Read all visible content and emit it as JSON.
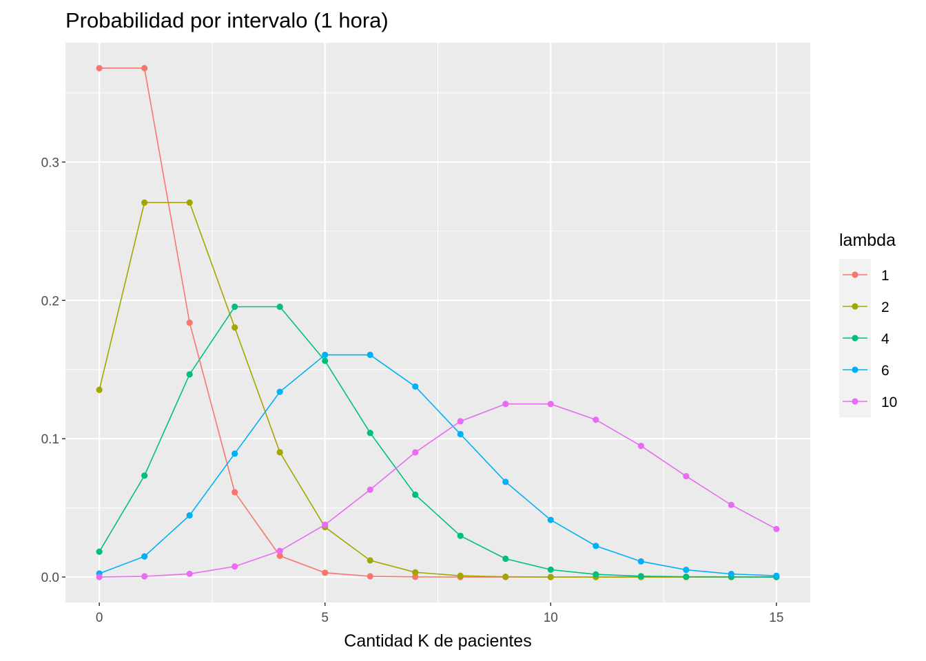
{
  "chart_data": {
    "type": "line",
    "title": "Probabilidad por intervalo (1 hora)",
    "xlabel": "Cantidad K de pacientes",
    "ylabel": "",
    "xlim": [
      -0.75,
      15.75
    ],
    "ylim": [
      -0.0184,
      0.3863
    ],
    "x_ticks": [
      0,
      5,
      10,
      15
    ],
    "x_tick_labels": [
      "0",
      "5",
      "10",
      "15"
    ],
    "y_ticks": [
      0,
      0.1,
      0.2,
      0.3
    ],
    "y_tick_labels": [
      "0.0",
      "0.1",
      "0.2",
      "0.3"
    ],
    "grid": true,
    "legend": {
      "title": "lambda",
      "position": "right"
    },
    "x": [
      0,
      1,
      2,
      3,
      4,
      5,
      6,
      7,
      8,
      9,
      10,
      11,
      12,
      13,
      14,
      15
    ],
    "series": [
      {
        "name": "1",
        "color": "#F8766D",
        "values": [
          0.3679,
          0.3679,
          0.1839,
          0.0613,
          0.0153,
          0.0031,
          0.0005,
          0.0001,
          0.0,
          0.0,
          0.0,
          0.0,
          0.0,
          0.0,
          0.0,
          0.0
        ]
      },
      {
        "name": "2",
        "color": "#A3A500",
        "values": [
          0.1353,
          0.2707,
          0.2707,
          0.1804,
          0.0902,
          0.0361,
          0.012,
          0.0034,
          0.0009,
          0.0002,
          0.0,
          0.0,
          0.0,
          0.0,
          0.0,
          0.0
        ]
      },
      {
        "name": "4",
        "color": "#00BF7D",
        "values": [
          0.0183,
          0.0733,
          0.1465,
          0.1954,
          0.1954,
          0.1563,
          0.1042,
          0.0595,
          0.0298,
          0.0132,
          0.0053,
          0.0019,
          0.0006,
          0.0002,
          0.0001,
          0.0
        ]
      },
      {
        "name": "6",
        "color": "#00B0F6",
        "values": [
          0.0025,
          0.0149,
          0.0446,
          0.0892,
          0.1339,
          0.1606,
          0.1606,
          0.1377,
          0.1033,
          0.0688,
          0.0413,
          0.0225,
          0.0113,
          0.0052,
          0.0022,
          0.0009
        ]
      },
      {
        "name": "10",
        "color": "#E76BF3",
        "values": [
          0.0,
          0.0005,
          0.0023,
          0.0076,
          0.0189,
          0.0378,
          0.0631,
          0.0901,
          0.1126,
          0.1251,
          0.1251,
          0.1137,
          0.0948,
          0.0729,
          0.0521,
          0.0347
        ]
      }
    ]
  }
}
